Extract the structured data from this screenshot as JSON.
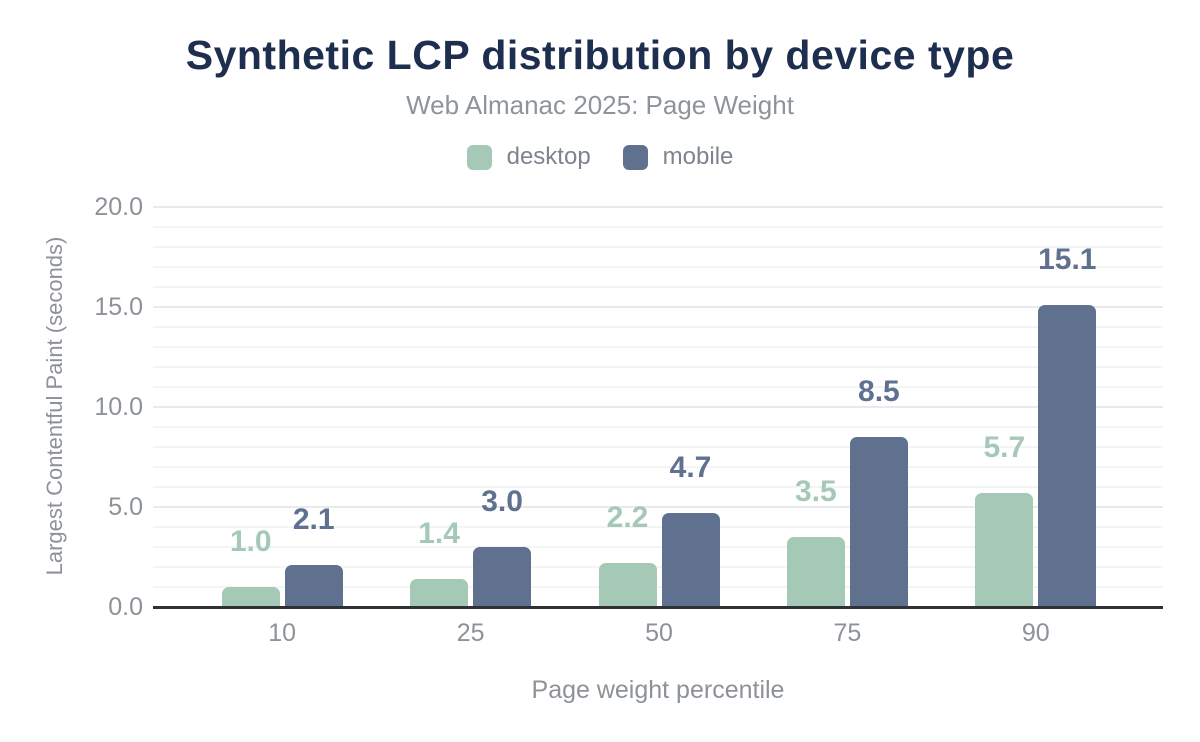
{
  "chart_data": {
    "type": "bar",
    "title": "Synthetic LCP distribution by device type",
    "subtitle": "Web Almanac 2025: Page Weight",
    "categories": [
      "10",
      "25",
      "50",
      "75",
      "90"
    ],
    "series": [
      {
        "name": "desktop",
        "color": "#a6c9b7",
        "values": [
          1.0,
          1.4,
          2.2,
          3.5,
          5.7
        ]
      },
      {
        "name": "mobile",
        "color": "#5f718e",
        "values": [
          2.1,
          3.0,
          4.7,
          8.5,
          15.1
        ]
      }
    ],
    "xlabel": "Page weight percentile",
    "ylabel": "Largest Contentful Paint (seconds)",
    "ylim": [
      0,
      20
    ],
    "yticks": [
      0,
      5,
      10,
      15,
      20
    ],
    "ytick_labels": [
      "0.0",
      "5.0",
      "10.0",
      "15.0",
      "20.0"
    ],
    "grid": {
      "minor_step": 1,
      "major_step": 5,
      "on": true
    },
    "legend_position": "top",
    "data_labels": "one decimal, colored per series, above bars"
  },
  "colors": {
    "title": "#1d2e4e",
    "subtitle": "#8e949b",
    "axis_text": "#8d9299",
    "legend_text": "#7e848d",
    "axis_line": "#2e3135",
    "grid_minor": "#f3f4f4",
    "grid_major": "#e9eaeb",
    "background": "#ffffff"
  }
}
